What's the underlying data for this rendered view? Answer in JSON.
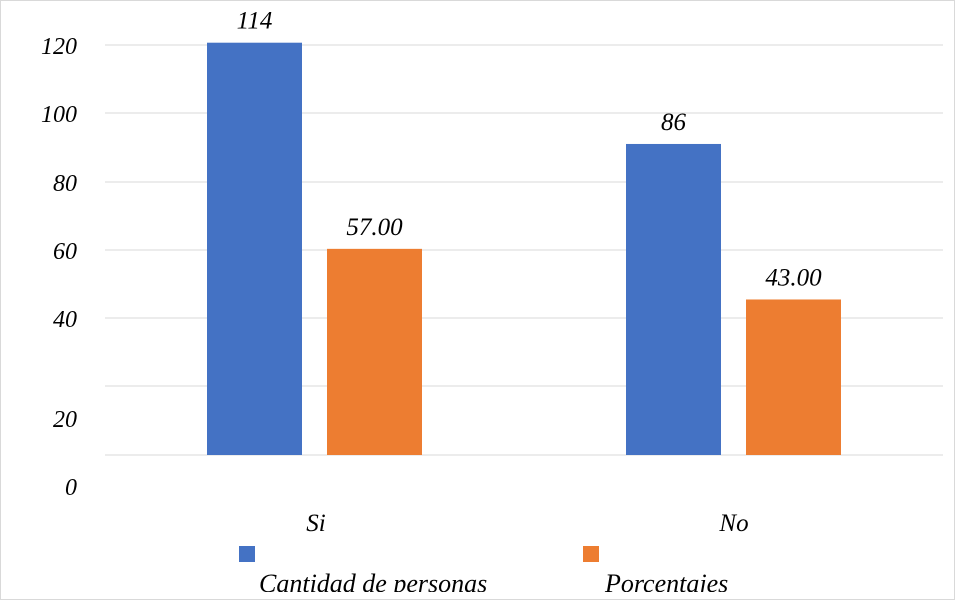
{
  "chart_data": {
    "type": "bar",
    "categories": [
      "Si",
      "No"
    ],
    "series": [
      {
        "name": "Cantidad de personas",
        "values": [
          114,
          86
        ],
        "labels": [
          "114",
          "86"
        ],
        "color": "#4472C4"
      },
      {
        "name": "Porcentajes",
        "values": [
          57.0,
          43.0
        ],
        "labels": [
          "57.00",
          "43.00"
        ],
        "color": "#ED7D31"
      }
    ],
    "y_ticks": [
      "0",
      "20",
      "40",
      "60",
      "80",
      "100",
      "120"
    ],
    "ylim": [
      0,
      120
    ],
    "grid": true,
    "legend_position": "bottom"
  }
}
